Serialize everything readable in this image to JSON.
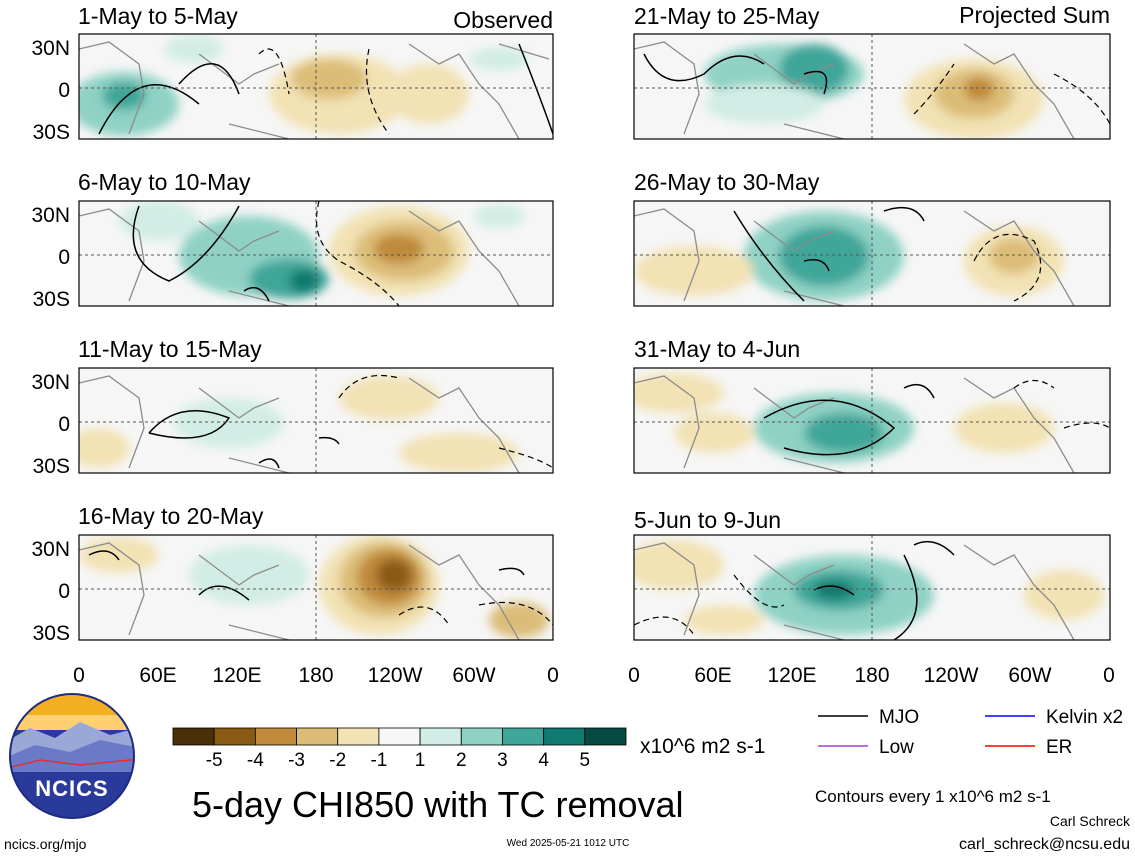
{
  "header": {
    "observed_label": "Observed",
    "projected_label": "Projected Sum"
  },
  "panels": [
    {
      "title": "1-May to 5-May"
    },
    {
      "title": "6-May to 10-May"
    },
    {
      "title": "11-May to 15-May"
    },
    {
      "title": "16-May to 20-May"
    },
    {
      "title": "21-May to 25-May"
    },
    {
      "title": "26-May to 30-May"
    },
    {
      "title": "31-May to 4-Jun"
    },
    {
      "title": "5-Jun to 9-Jun"
    }
  ],
  "lat_labels": [
    "30N",
    "0",
    "30S"
  ],
  "lon_labels": [
    "0",
    "60E",
    "120E",
    "180",
    "120W",
    "60W",
    "0"
  ],
  "colorbar": {
    "colors": [
      "#4a3008",
      "#8a5a14",
      "#bf8a3a",
      "#dcbd78",
      "#f2e2b4",
      "#f6f6f6",
      "#d2ede5",
      "#8fd2c4",
      "#3fa69a",
      "#0f7a70",
      "#064a44"
    ],
    "tick_labels": [
      "-5",
      "-4",
      "-3",
      "-2",
      "-1",
      "1",
      "2",
      "3",
      "4",
      "5"
    ],
    "units": "x10^6 m2 s-1"
  },
  "legend": {
    "items": [
      {
        "label": "MJO",
        "color": "#000000"
      },
      {
        "label": "Kelvin x2",
        "color": "#0000ff"
      },
      {
        "label": "Low",
        "color": "#a040e0"
      },
      {
        "label": "ER",
        "color": "#ff0000"
      }
    ],
    "contours_note": "Contours every 1 x10^6 m2 s-1"
  },
  "main_title": "5-day CHI850 with TC removal",
  "logo_text": "NCICS",
  "footer": {
    "url": "ncics.org/mjo",
    "timestamp": "Wed 2025-05-21 1012 UTC",
    "author": "Carl Schreck",
    "email": "carl_schreck@ncsu.edu"
  }
}
